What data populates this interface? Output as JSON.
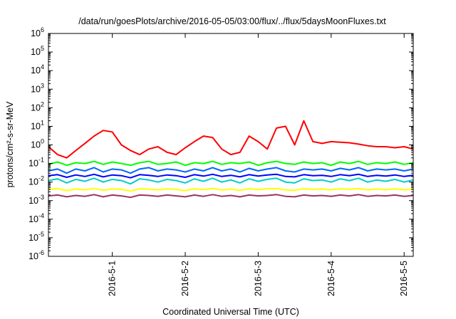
{
  "chart_data": {
    "type": "line",
    "title": "/data/run/goesPlots/archive/2016-05-05/03:00/flux/../flux/5daysMoonFluxes.txt",
    "xlabel": "Coordinated Universal Time (UTC)",
    "ylabel": "protons/cm²-s-sr-MeV",
    "y_scale": "log",
    "ylim": [
      1e-06,
      1000000.0
    ],
    "y_ticks": [
      {
        "value": 1e-06,
        "base": "10",
        "exp": "-6"
      },
      {
        "value": 1e-05,
        "base": "10",
        "exp": "-5"
      },
      {
        "value": 0.0001,
        "base": "10",
        "exp": "-4"
      },
      {
        "value": 0.001,
        "base": "10",
        "exp": "-3"
      },
      {
        "value": 0.01,
        "base": "10",
        "exp": "-2"
      },
      {
        "value": 0.1,
        "base": "10",
        "exp": "-1"
      },
      {
        "value": 1,
        "base": "10",
        "exp": "0"
      },
      {
        "value": 10,
        "base": "10",
        "exp": "1"
      },
      {
        "value": 100,
        "base": "10",
        "exp": "2"
      },
      {
        "value": 1000,
        "base": "10",
        "exp": "3"
      },
      {
        "value": 10000,
        "base": "10",
        "exp": "4"
      },
      {
        "value": 100000,
        "base": "10",
        "exp": "5"
      },
      {
        "value": 1000000,
        "base": "10",
        "exp": "6"
      }
    ],
    "xlim": [
      "2016-04-30 03:00",
      "2016-05-05 03:00"
    ],
    "x_ticks": [
      {
        "value": "2016-05-01 00:00",
        "label": "2016-5-1"
      },
      {
        "value": "2016-05-02 00:00",
        "label": "2016-5-2"
      },
      {
        "value": "2016-05-03 00:00",
        "label": "2016-5-3"
      },
      {
        "value": "2016-05-04 00:00",
        "label": "2016-5-4"
      },
      {
        "value": "2016-05-05 00:00",
        "label": "2016-5-5"
      }
    ],
    "grid": false,
    "legend": "none",
    "x": [
      "2016-04-30 03:00",
      "2016-04-30 06:00",
      "2016-04-30 09:00",
      "2016-04-30 12:00",
      "2016-04-30 15:00",
      "2016-04-30 18:00",
      "2016-04-30 21:00",
      "2016-05-01 00:00",
      "2016-05-01 03:00",
      "2016-05-01 06:00",
      "2016-05-01 09:00",
      "2016-05-01 12:00",
      "2016-05-01 15:00",
      "2016-05-01 18:00",
      "2016-05-01 21:00",
      "2016-05-02 00:00",
      "2016-05-02 03:00",
      "2016-05-02 06:00",
      "2016-05-02 09:00",
      "2016-05-02 12:00",
      "2016-05-02 15:00",
      "2016-05-02 18:00",
      "2016-05-02 21:00",
      "2016-05-03 00:00",
      "2016-05-03 03:00",
      "2016-05-03 06:00",
      "2016-05-03 09:00",
      "2016-05-03 12:00",
      "2016-05-03 15:00",
      "2016-05-03 18:00",
      "2016-05-03 21:00",
      "2016-05-04 00:00",
      "2016-05-04 03:00",
      "2016-05-04 06:00",
      "2016-05-04 09:00",
      "2016-05-04 12:00",
      "2016-05-04 15:00",
      "2016-05-04 18:00",
      "2016-05-04 21:00",
      "2016-05-05 00:00",
      "2016-05-05 03:00"
    ],
    "series": [
      {
        "color": "#ff0000",
        "values": [
          0.8,
          0.3,
          0.2,
          0.5,
          1.2,
          3,
          6,
          5,
          1,
          0.5,
          0.3,
          0.6,
          0.8,
          0.4,
          0.3,
          0.7,
          1.5,
          3,
          2.5,
          0.6,
          0.3,
          0.4,
          3,
          1.5,
          0.6,
          8,
          10,
          1,
          20,
          1.5,
          1.2,
          1.5,
          1.4,
          1.3,
          1.1,
          0.9,
          0.8,
          0.8,
          0.7,
          0.8,
          0.6
        ]
      },
      {
        "color": "#00ff00",
        "values": [
          0.09,
          0.12,
          0.08,
          0.11,
          0.1,
          0.13,
          0.09,
          0.12,
          0.1,
          0.08,
          0.11,
          0.13,
          0.09,
          0.1,
          0.12,
          0.08,
          0.11,
          0.1,
          0.13,
          0.09,
          0.11,
          0.1,
          0.12,
          0.08,
          0.11,
          0.13,
          0.1,
          0.09,
          0.12,
          0.1,
          0.11,
          0.08,
          0.12,
          0.1,
          0.13,
          0.09,
          0.11,
          0.1,
          0.12,
          0.09,
          0.11
        ]
      },
      {
        "color": "#0066ff",
        "values": [
          0.04,
          0.05,
          0.03,
          0.05,
          0.04,
          0.06,
          0.035,
          0.05,
          0.045,
          0.03,
          0.05,
          0.06,
          0.04,
          0.05,
          0.045,
          0.035,
          0.05,
          0.04,
          0.06,
          0.04,
          0.05,
          0.035,
          0.055,
          0.04,
          0.05,
          0.06,
          0.04,
          0.035,
          0.05,
          0.045,
          0.05,
          0.04,
          0.055,
          0.045,
          0.06,
          0.04,
          0.05,
          0.045,
          0.05,
          0.04,
          0.05
        ]
      },
      {
        "color": "#00cccc",
        "values": [
          0.012,
          0.015,
          0.009,
          0.014,
          0.011,
          0.016,
          0.01,
          0.014,
          0.012,
          0.008,
          0.015,
          0.013,
          0.01,
          0.014,
          0.012,
          0.009,
          0.015,
          0.011,
          0.016,
          0.01,
          0.013,
          0.009,
          0.015,
          0.011,
          0.014,
          0.016,
          0.01,
          0.009,
          0.015,
          0.012,
          0.013,
          0.01,
          0.015,
          0.012,
          0.016,
          0.01,
          0.013,
          0.011,
          0.014,
          0.01,
          0.013
        ]
      },
      {
        "color": "#0000ff",
        "values": [
          0.022,
          0.025,
          0.018,
          0.024,
          0.02,
          0.026,
          0.019,
          0.024,
          0.022,
          0.017,
          0.025,
          0.023,
          0.02,
          0.024,
          0.022,
          0.018,
          0.025,
          0.021,
          0.026,
          0.02,
          0.023,
          0.019,
          0.025,
          0.021,
          0.024,
          0.026,
          0.02,
          0.019,
          0.025,
          0.022,
          0.023,
          0.02,
          0.025,
          0.022,
          0.026,
          0.02,
          0.023,
          0.021,
          0.024,
          0.02,
          0.023
        ]
      },
      {
        "color": "#ffff00",
        "values": [
          0.004,
          0.0045,
          0.0035,
          0.0042,
          0.0038,
          0.0045,
          0.0036,
          0.0043,
          0.004,
          0.0033,
          0.0044,
          0.0041,
          0.0038,
          0.0043,
          0.004,
          0.0035,
          0.0044,
          0.0039,
          0.0045,
          0.0037,
          0.0042,
          0.0036,
          0.0044,
          0.0039,
          0.0043,
          0.0045,
          0.0038,
          0.0036,
          0.0044,
          0.004,
          0.0042,
          0.0038,
          0.0044,
          0.004,
          0.0045,
          0.0038,
          0.0042,
          0.0039,
          0.0043,
          0.0038,
          0.0042
        ]
      },
      {
        "color": "#993366",
        "values": [
          0.0018,
          0.002,
          0.0016,
          0.0019,
          0.0017,
          0.0021,
          0.0016,
          0.002,
          0.0018,
          0.0015,
          0.002,
          0.0019,
          0.0017,
          0.002,
          0.0018,
          0.0016,
          0.002,
          0.0017,
          0.0021,
          0.0017,
          0.0019,
          0.0016,
          0.002,
          0.0018,
          0.0019,
          0.0021,
          0.0017,
          0.0016,
          0.002,
          0.0018,
          0.0019,
          0.0017,
          0.002,
          0.0018,
          0.0021,
          0.0017,
          0.0019,
          0.0018,
          0.002,
          0.0017,
          0.0019
        ]
      }
    ]
  }
}
